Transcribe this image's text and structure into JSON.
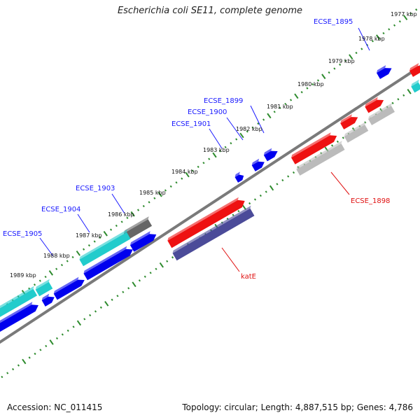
{
  "title": "Escherichia coli SE11, complete genome",
  "footer": {
    "accession": "Accession: NC_011415",
    "topology": "Topology: circular; Length: 4,887,515 bp; Genes: 4,786"
  },
  "colors": {
    "backbone": "#7a7a7a",
    "ticks": "#2e8b2e",
    "forward_gene": "#ee1111",
    "forward_gene_alt": "#0000ee",
    "cyan_gene": "#22cccc",
    "gray_gene": "#bbbbbb",
    "dark_gray_gene": "#666666",
    "purple_gene": "#4b4b99",
    "label_blue": "#1a1aff",
    "label_red": "#e01010"
  },
  "kbp_labels": [
    "1977 kbp",
    "1978 kbp",
    "1979 kbp",
    "1980 kbp",
    "1981 kbp",
    "1982 kbp",
    "1983 kbp",
    "1984 kbp",
    "1985 kbp",
    "1986 kbp",
    "1987 kbp",
    "1988 kbp",
    "1989 kbp"
  ],
  "gene_labels": [
    {
      "text": "ECSE_1895",
      "color": "blue"
    },
    {
      "text": "ECSE_1899",
      "color": "blue"
    },
    {
      "text": "ECSE_1900",
      "color": "blue"
    },
    {
      "text": "ECSE_1901",
      "color": "blue"
    },
    {
      "text": "ECSE_1903",
      "color": "blue"
    },
    {
      "text": "ECSE_1904",
      "color": "blue"
    },
    {
      "text": "ECSE_1905",
      "color": "blue"
    },
    {
      "text": "ECSE_1898",
      "color": "red"
    },
    {
      "text": "katE",
      "color": "red"
    }
  ]
}
